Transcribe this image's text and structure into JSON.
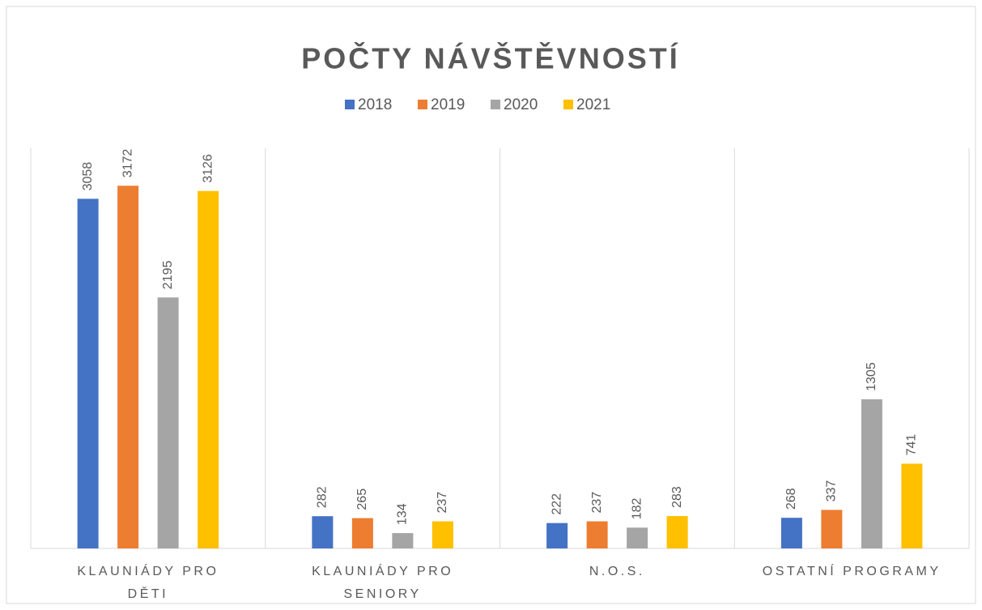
{
  "chart_data": {
    "type": "bar",
    "title": "POČTY NÁVŠTĚVNOSTÍ",
    "categories": [
      "KLAUNIÁDY PRO DĚTI",
      "KLAUNIÁDY PRO SENIORY",
      "N.O.S.",
      "OSTATNÍ PROGRAMY"
    ],
    "series": [
      {
        "name": "2018",
        "color": "#4472c4",
        "values": [
          3058,
          282,
          222,
          268
        ]
      },
      {
        "name": "2019",
        "color": "#ed7d31",
        "values": [
          3172,
          265,
          237,
          337
        ]
      },
      {
        "name": "2020",
        "color": "#a5a5a5",
        "values": [
          2195,
          134,
          182,
          1305
        ]
      },
      {
        "name": "2021",
        "color": "#ffc000",
        "values": [
          3126,
          237,
          283,
          741
        ]
      }
    ],
    "ylim": [
      0,
      3500
    ],
    "legend": "top"
  }
}
